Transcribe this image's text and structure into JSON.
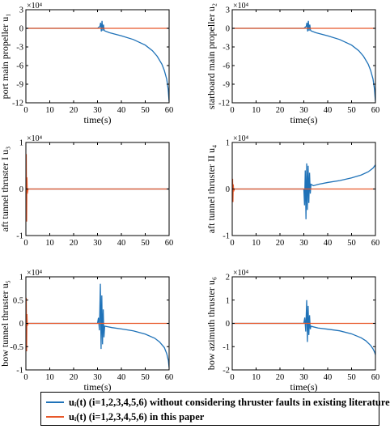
{
  "colors": {
    "blue": "#1f72b8",
    "orange": "#e8582a",
    "axis": "#000000"
  },
  "legend": {
    "items": [
      {
        "label": "uᵢ(t) (i=1,2,3,4,5,6) without considering thruster faults in existing literature",
        "color": "#1f72b8"
      },
      {
        "label": "uᵢ(t) (i=1,2,3,4,5,6) in this paper",
        "color": "#e8582a"
      }
    ]
  },
  "chart_data": [
    {
      "type": "line",
      "id": "u1",
      "ylabel": "port main propeller u₁",
      "xlabel": "time(s)",
      "exponent": "×10⁴",
      "xlim": [
        0,
        60
      ],
      "ylim": [
        -12,
        3
      ],
      "xticks": [
        "0",
        "10",
        "20",
        "30",
        "40",
        "50",
        "60"
      ],
      "yticks": [
        "3",
        "0",
        "-3",
        "-6",
        "-9",
        "-12"
      ],
      "series": [
        {
          "color": "#1f72b8",
          "x": [
            0,
            30,
            31,
            31.3,
            31.6,
            31.9,
            32.2,
            32.5,
            32.8,
            33,
            35,
            40,
            45,
            50,
            53,
            55,
            57,
            58,
            59,
            59.6,
            60
          ],
          "y": [
            0,
            0,
            0.3,
            0.9,
            -0.5,
            1.2,
            -0.4,
            0.6,
            -0.3,
            -0.4,
            -0.7,
            -1.2,
            -1.8,
            -2.7,
            -3.6,
            -4.5,
            -5.8,
            -6.8,
            -8.2,
            -9.8,
            -11.8
          ]
        },
        {
          "color": "#e8582a",
          "x": [
            0,
            60
          ],
          "y": [
            0,
            0
          ]
        }
      ]
    },
    {
      "type": "line",
      "id": "u2",
      "ylabel": "starboard main propeller u₂",
      "xlabel": "time(s)",
      "exponent": "×10⁴",
      "xlim": [
        0,
        60
      ],
      "ylim": [
        -12,
        3
      ],
      "xticks": [
        "0",
        "10",
        "20",
        "30",
        "40",
        "50",
        "60"
      ],
      "yticks": [
        "3",
        "0",
        "-3",
        "-6",
        "-9",
        "-12"
      ],
      "series": [
        {
          "color": "#1f72b8",
          "x": [
            0,
            30,
            31,
            31.3,
            31.6,
            31.9,
            32.2,
            32.5,
            32.8,
            33,
            35,
            40,
            45,
            50,
            53,
            55,
            57,
            58,
            59,
            59.6,
            60
          ],
          "y": [
            0,
            0,
            0.3,
            0.9,
            -0.5,
            1.2,
            -0.4,
            0.6,
            -0.3,
            -0.4,
            -0.7,
            -1.2,
            -1.8,
            -2.7,
            -3.6,
            -4.5,
            -5.8,
            -6.8,
            -8.2,
            -9.8,
            -11.8
          ]
        },
        {
          "color": "#e8582a",
          "x": [
            0,
            60
          ],
          "y": [
            0,
            0
          ]
        }
      ]
    },
    {
      "type": "line",
      "id": "u3",
      "ylabel": "aft tunnel thruster I u₃",
      "xlabel": "",
      "exponent": "×10⁴",
      "xlim": [
        0,
        60
      ],
      "ylim": [
        -1,
        1
      ],
      "xticks": [
        "0",
        "10",
        "20",
        "30",
        "40",
        "50",
        "60"
      ],
      "yticks": [
        "1",
        "0",
        "-1"
      ],
      "series": [
        {
          "color": "#1f72b8",
          "x": [
            0,
            60
          ],
          "y": [
            0,
            0
          ]
        },
        {
          "color": "#e8582a",
          "x": [
            0,
            0.15,
            0.3,
            0.45,
            0.6,
            0.9,
            60
          ],
          "y": [
            0,
            0.75,
            -0.7,
            0.25,
            -0.1,
            0,
            0
          ]
        }
      ]
    },
    {
      "type": "line",
      "id": "u4",
      "ylabel": "aft tunnel thruster II u₄",
      "xlabel": "",
      "exponent": "×10⁴",
      "xlim": [
        0,
        60
      ],
      "ylim": [
        -1,
        1
      ],
      "xticks": [
        "0",
        "10",
        "20",
        "30",
        "40",
        "50",
        "60"
      ],
      "yticks": [
        "1",
        "0",
        "-1"
      ],
      "series": [
        {
          "color": "#1f72b8",
          "x": [
            0,
            30,
            30.3,
            30.6,
            30.9,
            31.2,
            31.5,
            31.8,
            32.1,
            32.4,
            32.7,
            33,
            34,
            36,
            40,
            45,
            50,
            54,
            57,
            59,
            60
          ],
          "y": [
            0,
            0,
            -0.35,
            0.4,
            -0.65,
            0.55,
            -0.45,
            0.5,
            -0.3,
            0.35,
            -0.1,
            0.1,
            0.07,
            0.1,
            0.14,
            0.18,
            0.24,
            0.3,
            0.37,
            0.45,
            0.52
          ]
        },
        {
          "color": "#e8582a",
          "x": [
            0,
            0.15,
            0.3,
            0.45,
            0.6,
            0.9,
            60
          ],
          "y": [
            0,
            0.22,
            -0.28,
            0.1,
            -0.05,
            0,
            0
          ]
        }
      ]
    },
    {
      "type": "line",
      "id": "u5",
      "ylabel": "bow tunnel thruster u₅",
      "xlabel": "time(s)",
      "exponent": "×10⁴",
      "xlim": [
        0,
        60
      ],
      "ylim": [
        -1,
        1
      ],
      "xticks": [
        "0",
        "10",
        "20",
        "30",
        "40",
        "50",
        "60"
      ],
      "yticks": [
        "1",
        "0.5",
        "0",
        "-0.5",
        "-1"
      ],
      "series": [
        {
          "color": "#1f72b8",
          "x": [
            0,
            30,
            30.4,
            30.8,
            31.2,
            31.5,
            31.8,
            32.1,
            32.4,
            32.7,
            33,
            34,
            36,
            40,
            45,
            50,
            54,
            56,
            58,
            59,
            59.7,
            60
          ],
          "y": [
            0,
            0,
            0.12,
            -0.15,
            0.85,
            -0.55,
            0.6,
            -0.45,
            0.3,
            -0.3,
            -0.06,
            -0.07,
            -0.09,
            -0.12,
            -0.16,
            -0.23,
            -0.32,
            -0.4,
            -0.52,
            -0.65,
            -0.8,
            -0.95
          ]
        },
        {
          "color": "#e8582a",
          "x": [
            0,
            0.15,
            0.3,
            0.45,
            0.6,
            0.9,
            60
          ],
          "y": [
            0,
            0.55,
            -0.6,
            0.2,
            -0.05,
            0,
            0
          ]
        }
      ]
    },
    {
      "type": "line",
      "id": "u6",
      "ylabel": "bow azimuth thruster u₆",
      "xlabel": "time(s)",
      "exponent": "×10⁴",
      "xlim": [
        0,
        60
      ],
      "ylim": [
        -2,
        2
      ],
      "xticks": [
        "0",
        "10",
        "20",
        "30",
        "40",
        "50",
        "60"
      ],
      "yticks": [
        "2",
        "1",
        "0",
        "-1",
        "-2"
      ],
      "series": [
        {
          "color": "#1f72b8",
          "x": [
            0,
            30,
            30.4,
            30.8,
            31.2,
            31.5,
            31.8,
            32.1,
            32.4,
            32.7,
            33,
            34,
            36,
            40,
            45,
            50,
            54,
            56,
            58,
            59,
            59.7,
            60
          ],
          "y": [
            0,
            0,
            0.25,
            -0.35,
            1.0,
            -0.8,
            0.75,
            -0.5,
            0.35,
            -0.25,
            -0.12,
            -0.15,
            -0.2,
            -0.25,
            -0.32,
            -0.45,
            -0.62,
            -0.75,
            -0.95,
            -1.1,
            -1.25,
            -1.35
          ]
        },
        {
          "color": "#e8582a",
          "x": [
            0,
            60
          ],
          "y": [
            0,
            0
          ]
        }
      ]
    }
  ]
}
